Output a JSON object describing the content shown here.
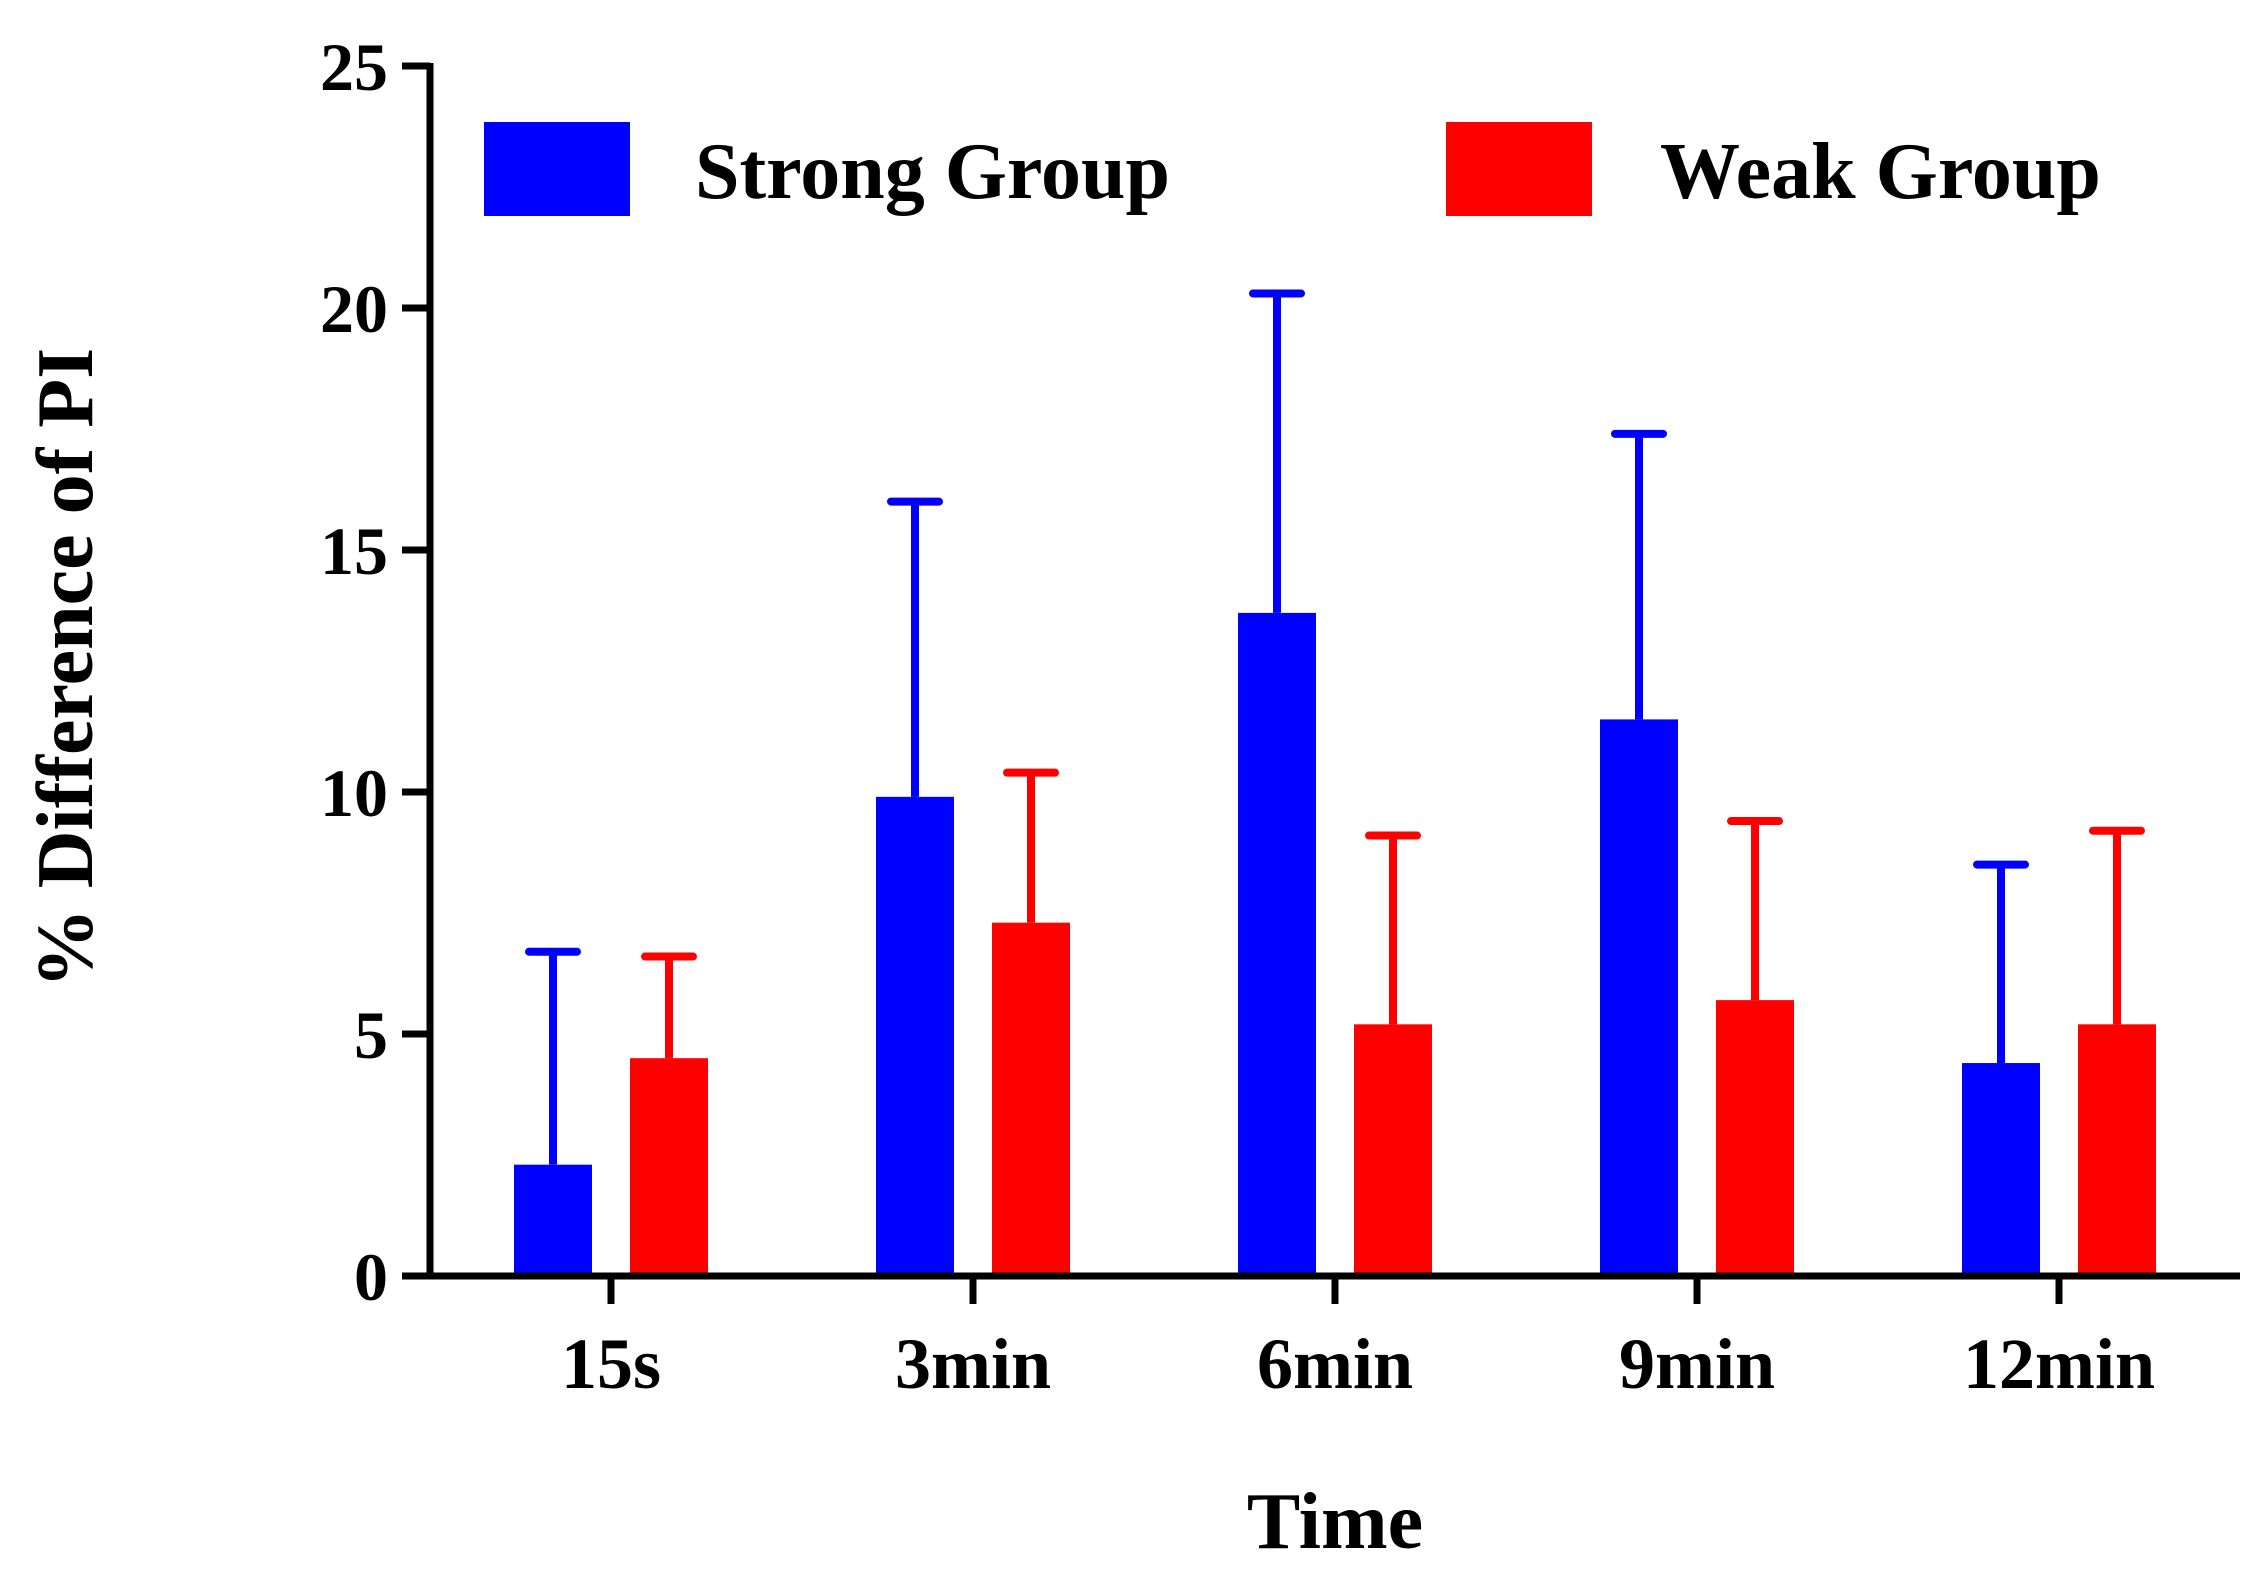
{
  "chart_data": {
    "type": "bar",
    "title": "",
    "xlabel": "Time",
    "ylabel": "% Difference of PI",
    "categories": [
      "15s",
      "3min",
      "6min",
      "9min",
      "12min"
    ],
    "ylim": [
      0,
      25
    ],
    "yticks": [
      "0",
      "5",
      "10",
      "15",
      "20",
      "25"
    ],
    "ytick_values": [
      0,
      5,
      10,
      15,
      20,
      25
    ],
    "legend_position": "top",
    "grid": false,
    "series": [
      {
        "name": "Strong Group",
        "color": "#0000ff",
        "values": [
          2.3,
          9.9,
          13.7,
          11.5,
          4.4
        ],
        "error_upper": [
          6.7,
          16.0,
          20.3,
          17.4,
          8.5
        ]
      },
      {
        "name": "Weak Group",
        "color": "#ff0000",
        "values": [
          4.5,
          7.3,
          5.2,
          5.7,
          5.2
        ],
        "error_upper": [
          6.6,
          10.4,
          9.1,
          9.4,
          9.2
        ]
      }
    ]
  }
}
